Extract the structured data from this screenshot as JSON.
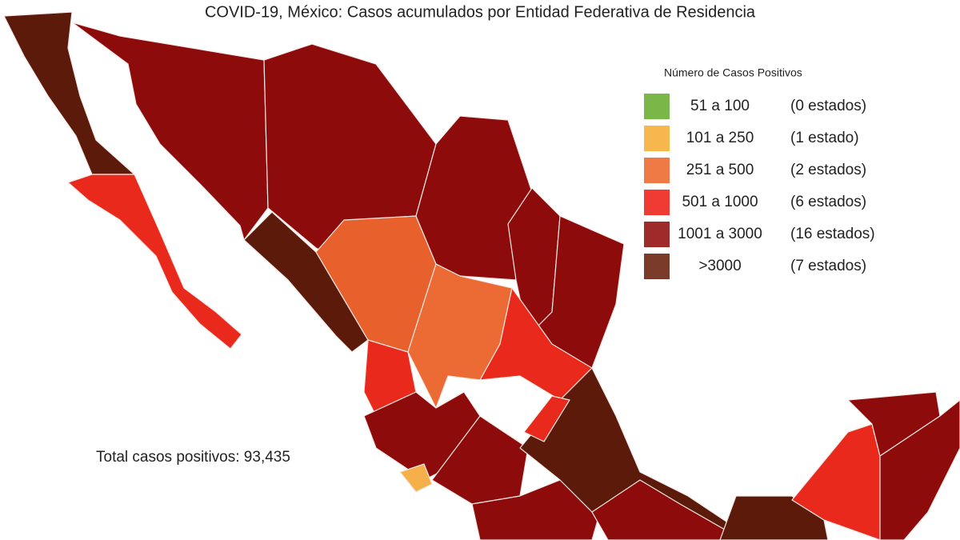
{
  "title": "COVID-19, México: Casos acumulados por Entidad Federativa de Residencia",
  "legend": {
    "title": "Número de Casos Positivos",
    "items": [
      {
        "range": "51 a 100",
        "count": "(0 estados)",
        "color": "#7ab648"
      },
      {
        "range": "101 a 250",
        "count": "(1 estado)",
        "color": "#f5b74e"
      },
      {
        "range": "251 a 500",
        "count": "(2 estados)",
        "color": "#ef7a45"
      },
      {
        "range": "501 a 1000",
        "count": "(6 estados)",
        "color": "#ef3b34"
      },
      {
        "range": "1001 a 3000",
        "count": "(16 estados)",
        "color": "#9e2a2a"
      },
      {
        "range": ">3000",
        "count": "(7 estados)",
        "color": "#7a3b2a"
      }
    ]
  },
  "total": "Total casos positivos: 93,435"
}
